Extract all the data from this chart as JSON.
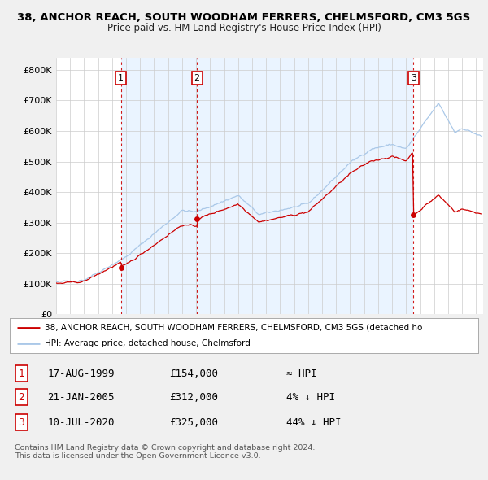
{
  "title": "38, ANCHOR REACH, SOUTH WOODHAM FERRERS, CHELMSFORD, CM3 5GS",
  "subtitle": "Price paid vs. HM Land Registry's House Price Index (HPI)",
  "ylabel_ticks": [
    "£0",
    "£100K",
    "£200K",
    "£300K",
    "£400K",
    "£500K",
    "£600K",
    "£700K",
    "£800K"
  ],
  "ytick_values": [
    0,
    100000,
    200000,
    300000,
    400000,
    500000,
    600000,
    700000,
    800000
  ],
  "ylim": [
    0,
    840000
  ],
  "xlim_start": 1995.0,
  "xlim_end": 2025.5,
  "hpi_color": "#aac8e8",
  "price_color": "#cc0000",
  "vline_color": "#cc0000",
  "shade_color": "#ddeeff",
  "sale_points": [
    {
      "year": 1999.63,
      "price": 154000,
      "label": "1"
    },
    {
      "year": 2005.06,
      "price": 312000,
      "label": "2"
    },
    {
      "year": 2020.53,
      "price": 325000,
      "label": "3"
    }
  ],
  "table_rows": [
    {
      "num": "1",
      "date": "17-AUG-1999",
      "price": "£154,000",
      "hpi": "≈ HPI"
    },
    {
      "num": "2",
      "date": "21-JAN-2005",
      "price": "£312,000",
      "hpi": "4% ↓ HPI"
    },
    {
      "num": "3",
      "date": "10-JUL-2020",
      "price": "£325,000",
      "hpi": "44% ↓ HPI"
    }
  ],
  "legend_label_red": "38, ANCHOR REACH, SOUTH WOODHAM FERRERS, CHELMSFORD, CM3 5GS (detached ho",
  "legend_label_blue": "HPI: Average price, detached house, Chelmsford",
  "footer": "Contains HM Land Registry data © Crown copyright and database right 2024.\nThis data is licensed under the Open Government Licence v3.0.",
  "bg_color": "#f0f0f0",
  "plot_bg_color": "#ffffff"
}
